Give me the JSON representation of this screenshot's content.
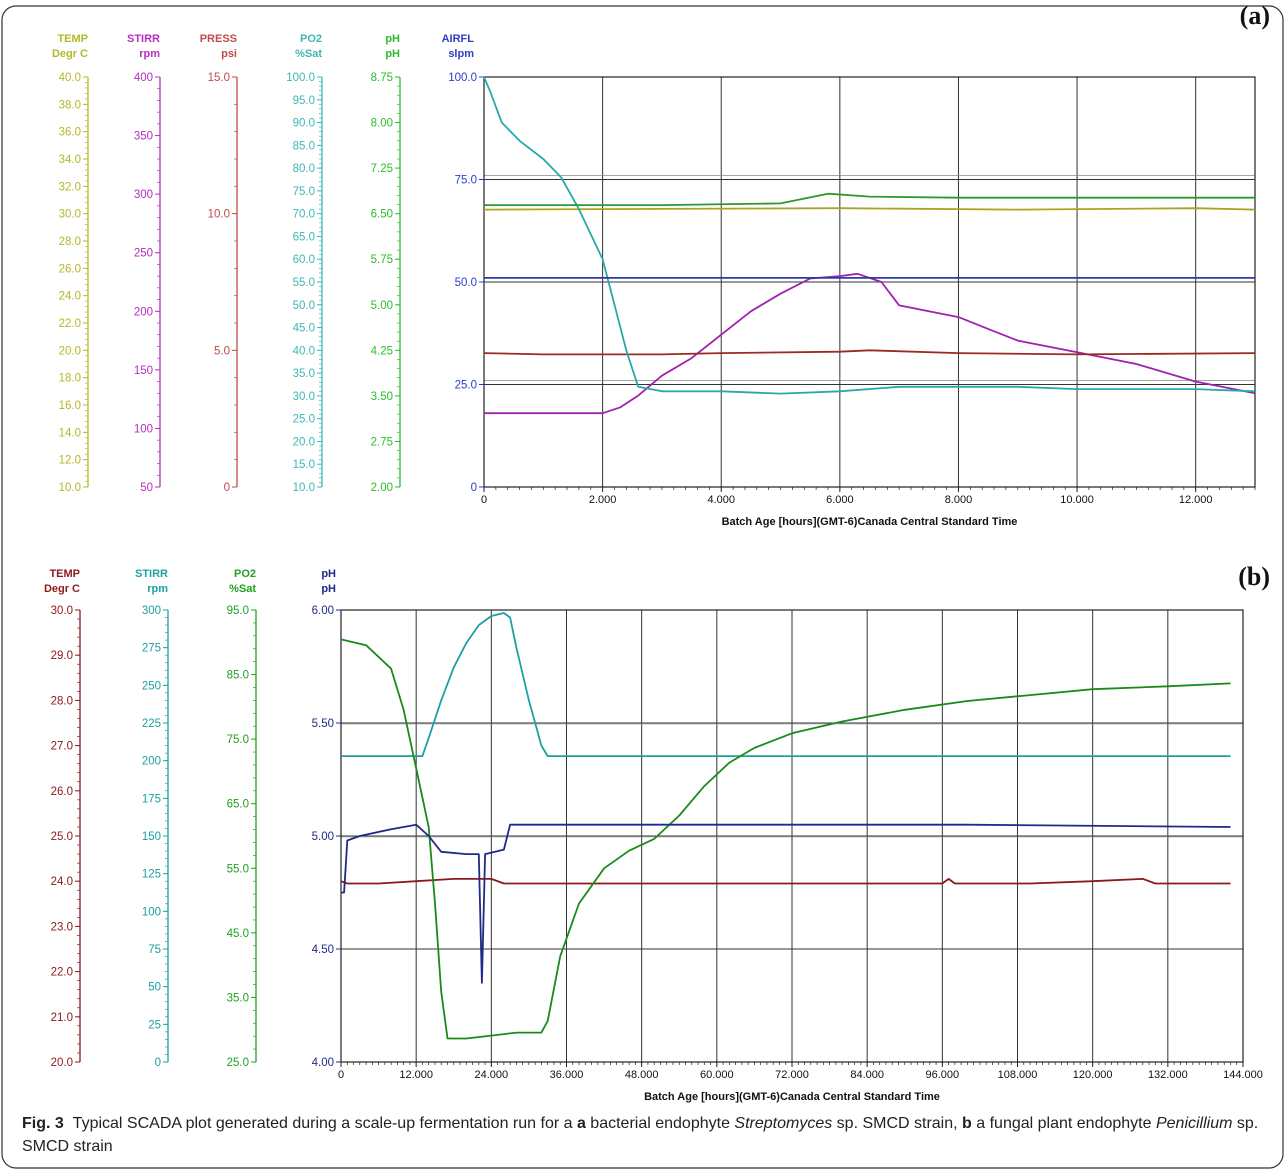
{
  "panel_labels": {
    "a": "(a)",
    "b": "(b)"
  },
  "caption": {
    "fig": "Fig. 3",
    "text_1": "Typical SCADA plot generated during a scale-up fermentation run for a ",
    "bold_a": "a",
    "text_2": " bacterial endophyte ",
    "italic_a": "Streptomyces",
    "text_3": " sp. SMCD strain, ",
    "bold_b": "b",
    "text_4": " a fungal plant endophyte ",
    "italic_b": "Penicillium",
    "text_5": " sp. SMCD strain"
  },
  "chart_data": [
    {
      "type": "line",
      "panel": "(a)",
      "xlabel": "Batch Age [hours](GMT-6)Canada Central Standard Time",
      "xlim": [
        0,
        13
      ],
      "x_ticks": [
        "0",
        "2.000",
        "4.000",
        "6.000",
        "8.000",
        "10.000",
        "12.000"
      ],
      "grid": true,
      "axes": [
        {
          "name": "TEMP",
          "unit": "Degr C",
          "color": "#b5b827",
          "range": [
            10,
            40
          ],
          "labels": [
            "40.0",
            "38.0",
            "36.0",
            "34.0",
            "32.0",
            "30.0",
            "28.0",
            "26.0",
            "24.0",
            "22.0",
            "20.0",
            "18.0",
            "16.0",
            "14.0",
            "12.0",
            "10.0"
          ]
        },
        {
          "name": "STIRR",
          "unit": "rpm",
          "color": "#b52fc0",
          "range": [
            50,
            400
          ],
          "labels": [
            "400",
            "350",
            "300",
            "250",
            "200",
            "150",
            "100",
            "50"
          ]
        },
        {
          "name": "PRESS",
          "unit": "psi",
          "color": "#c24a4a",
          "range": [
            0,
            15
          ],
          "labels": [
            "15.0",
            "10.0",
            "5.0",
            "0"
          ]
        },
        {
          "name": "PO2",
          "unit": "%Sat",
          "color": "#3fb6b6",
          "range": [
            10,
            100
          ],
          "labels": [
            "100.0",
            "95.0",
            "90.0",
            "85.0",
            "80.0",
            "75.0",
            "70.0",
            "65.0",
            "60.0",
            "55.0",
            "50.0",
            "45.0",
            "40.0",
            "35.0",
            "30.0",
            "25.0",
            "20.0",
            "15.0",
            "10.0"
          ]
        },
        {
          "name": "pH",
          "unit": "pH",
          "color": "#2ebc2e",
          "range": [
            2,
            9.2
          ],
          "labels": [
            "8.75",
            "8.00",
            "7.25",
            "6.50",
            "5.75",
            "5.00",
            "4.25",
            "3.50",
            "2.75",
            "2.00"
          ]
        },
        {
          "name": "AIRFL",
          "unit": "slpm",
          "color": "#2c3ec8",
          "range": [
            0,
            100
          ],
          "labels": [
            "100.0",
            "75.0",
            "50.0",
            "25.0",
            "0"
          ]
        }
      ],
      "series": [
        {
          "axis": "TEMP",
          "color": "#a8a424",
          "points": [
            [
              0,
              30.3
            ],
            [
              3,
              30.35
            ],
            [
              6,
              30.4
            ],
            [
              9,
              30.3
            ],
            [
              12,
              30.4
            ],
            [
              13,
              30.3
            ]
          ]
        },
        {
          "axis": "STIRR",
          "color": "#a020b0",
          "points": [
            [
              0,
              113
            ],
            [
              2,
              113
            ],
            [
              2.3,
              118
            ],
            [
              2.6,
              128
            ],
            [
              3,
              145
            ],
            [
              3.5,
              160
            ],
            [
              4,
              180
            ],
            [
              4.5,
              200
            ],
            [
              5,
              215
            ],
            [
              5.5,
              228
            ],
            [
              6,
              230
            ],
            [
              6.3,
              232
            ],
            [
              6.7,
              225
            ],
            [
              7,
              205
            ],
            [
              7.5,
              200
            ],
            [
              8,
              195
            ],
            [
              8.5,
              185
            ],
            [
              9,
              175
            ],
            [
              10,
              165
            ],
            [
              11,
              155
            ],
            [
              12,
              140
            ],
            [
              13,
              130
            ]
          ]
        },
        {
          "axis": "PRESS",
          "color": "#9a2a24",
          "points": [
            [
              0,
              4.9
            ],
            [
              1,
              4.85
            ],
            [
              3,
              4.85
            ],
            [
              4,
              4.9
            ],
            [
              6,
              4.95
            ],
            [
              6.5,
              5.0
            ],
            [
              8,
              4.9
            ],
            [
              10,
              4.85
            ],
            [
              13,
              4.9
            ]
          ]
        },
        {
          "axis": "PO2",
          "color": "#2aa8a8",
          "points": [
            [
              0,
              100
            ],
            [
              0.1,
              97
            ],
            [
              0.3,
              90
            ],
            [
              0.6,
              86
            ],
            [
              1.0,
              82
            ],
            [
              1.3,
              78
            ],
            [
              1.6,
              71
            ],
            [
              2.0,
              60
            ],
            [
              2.2,
              50
            ],
            [
              2.4,
              40
            ],
            [
              2.6,
              32
            ],
            [
              3,
              31
            ],
            [
              4,
              31
            ],
            [
              5,
              30.5
            ],
            [
              6,
              31
            ],
            [
              7,
              32
            ],
            [
              8,
              32
            ],
            [
              9,
              32
            ],
            [
              10,
              31.5
            ],
            [
              11,
              31.5
            ],
            [
              12,
              31.5
            ],
            [
              13,
              31
            ]
          ]
        },
        {
          "axis": "pH",
          "color": "#2a9a2a",
          "points": [
            [
              0,
              6.95
            ],
            [
              3,
              6.95
            ],
            [
              5,
              6.98
            ],
            [
              5.8,
              7.15
            ],
            [
              6.5,
              7.1
            ],
            [
              8,
              7.08
            ],
            [
              10,
              7.08
            ],
            [
              13,
              7.08
            ]
          ]
        },
        {
          "axis": "AIRFL",
          "color": "#2a3aa8",
          "points": [
            [
              0,
              51
            ],
            [
              13,
              51
            ]
          ]
        }
      ]
    },
    {
      "type": "line",
      "panel": "(b)",
      "xlabel": "Batch Age [hours](GMT-6)Canada Central Standard Time",
      "xlim": [
        0,
        144
      ],
      "x_ticks": [
        "0",
        "12.000",
        "24.000",
        "36.000",
        "48.000",
        "60.000",
        "72.000",
        "84.000",
        "96.000",
        "108.000",
        "120.000",
        "132.000",
        "144.000"
      ],
      "grid": true,
      "axes": [
        {
          "name": "TEMP",
          "unit": "Degr C",
          "color": "#8b1a1a",
          "range": [
            20,
            30
          ],
          "labels": [
            "30.0",
            "29.0",
            "28.0",
            "27.0",
            "26.0",
            "25.0",
            "24.0",
            "23.0",
            "22.0",
            "21.0",
            "20.0"
          ]
        },
        {
          "name": "STIRR",
          "unit": "rpm",
          "color": "#1ea0a0",
          "range": [
            0,
            300
          ],
          "labels": [
            "300",
            "275",
            "250",
            "225",
            "200",
            "175",
            "150",
            "125",
            "100",
            "75",
            "50",
            "25",
            "0"
          ]
        },
        {
          "name": "PO2",
          "unit": "%Sat",
          "color": "#22a022",
          "range": [
            25,
            102
          ],
          "labels": [
            "95.0",
            "85.0",
            "75.0",
            "65.0",
            "55.0",
            "45.0",
            "35.0",
            "25.0"
          ]
        },
        {
          "name": "pH",
          "unit": "pH",
          "color": "#1f2a88",
          "range": [
            4,
            6
          ],
          "labels": [
            "6.00",
            "5.50",
            "5.00",
            "4.50",
            "4.00"
          ]
        }
      ],
      "series": [
        {
          "axis": "TEMP",
          "color": "#8b1a1a",
          "points": [
            [
              0,
              24.0
            ],
            [
              1,
              23.95
            ],
            [
              6,
              23.95
            ],
            [
              12,
              24.0
            ],
            [
              18,
              24.05
            ],
            [
              24,
              24.05
            ],
            [
              26,
              23.95
            ],
            [
              36,
              23.95
            ],
            [
              60,
              23.95
            ],
            [
              96,
              23.95
            ],
            [
              97,
              24.05
            ],
            [
              98,
              23.95
            ],
            [
              110,
              23.95
            ],
            [
              120,
              24.0
            ],
            [
              128,
              24.05
            ],
            [
              130,
              23.95
            ],
            [
              142,
              23.95
            ]
          ]
        },
        {
          "axis": "STIRR",
          "color": "#1ea0a0",
          "points": [
            [
              0,
              203
            ],
            [
              13,
              203
            ],
            [
              14,
              215
            ],
            [
              16,
              240
            ],
            [
              18,
              262
            ],
            [
              20,
              278
            ],
            [
              22,
              290
            ],
            [
              24,
              296
            ],
            [
              26,
              298
            ],
            [
              27,
              295
            ],
            [
              28,
              275
            ],
            [
              30,
              240
            ],
            [
              32,
              210
            ],
            [
              33,
              203
            ],
            [
              142,
              203
            ]
          ]
        },
        {
          "axis": "PO2",
          "color": "#1a8a1a",
          "points": [
            [
              0,
              97
            ],
            [
              4,
              96
            ],
            [
              8,
              92
            ],
            [
              10,
              85
            ],
            [
              12,
              75
            ],
            [
              14,
              65
            ],
            [
              15,
              52
            ],
            [
              16,
              37
            ],
            [
              17,
              29
            ],
            [
              20,
              29
            ],
            [
              24,
              29.5
            ],
            [
              28,
              30
            ],
            [
              32,
              30
            ],
            [
              33,
              32
            ],
            [
              35,
              43
            ],
            [
              38,
              52
            ],
            [
              42,
              58
            ],
            [
              46,
              61
            ],
            [
              50,
              63
            ],
            [
              54,
              67
            ],
            [
              58,
              72
            ],
            [
              62,
              76
            ],
            [
              66,
              78.5
            ],
            [
              72,
              81
            ],
            [
              80,
              83
            ],
            [
              90,
              85
            ],
            [
              100,
              86.5
            ],
            [
              110,
              87.5
            ],
            [
              120,
              88.5
            ],
            [
              132,
              89
            ],
            [
              142,
              89.5
            ]
          ]
        },
        {
          "axis": "pH",
          "color": "#1f2a88",
          "points": [
            [
              0,
              4.75
            ],
            [
              0.5,
              4.75
            ],
            [
              1,
              4.98
            ],
            [
              3,
              5.0
            ],
            [
              8,
              5.03
            ],
            [
              12,
              5.05
            ],
            [
              14,
              5.0
            ],
            [
              16,
              4.93
            ],
            [
              20,
              4.92
            ],
            [
              22,
              4.92
            ],
            [
              22.5,
              4.35
            ],
            [
              23,
              4.92
            ],
            [
              26,
              4.94
            ],
            [
              27,
              5.05
            ],
            [
              30,
              5.05
            ],
            [
              40,
              5.05
            ],
            [
              60,
              5.05
            ],
            [
              100,
              5.05
            ],
            [
              142,
              5.04
            ]
          ]
        }
      ]
    }
  ]
}
